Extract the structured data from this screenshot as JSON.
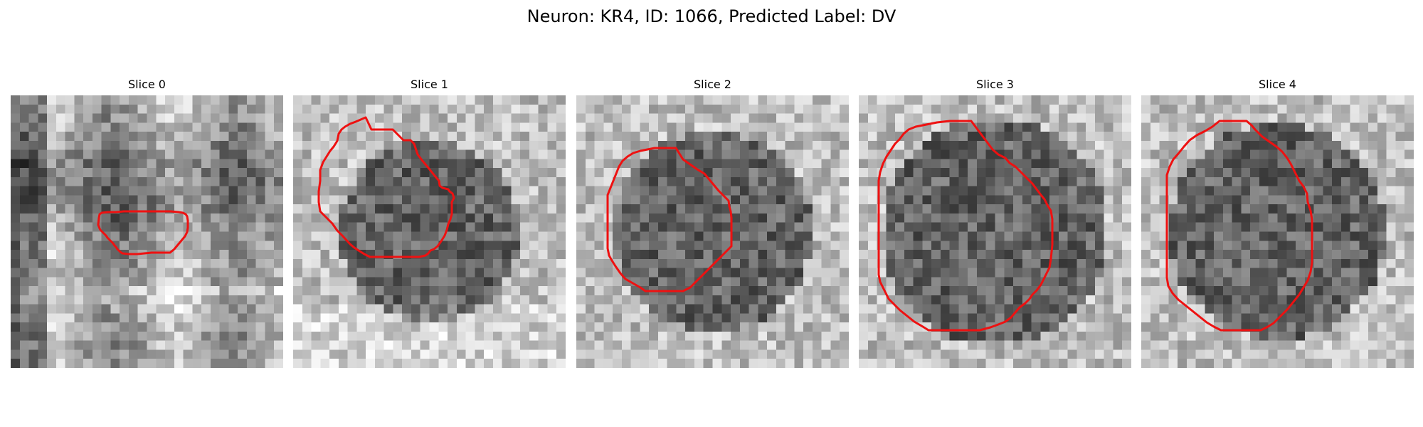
{
  "figure": {
    "title": "Neuron: KR4, ID: 1066, Predicted Label: DV"
  },
  "panels": [
    {
      "title": "Slice 0"
    },
    {
      "title": "Slice 1"
    },
    {
      "title": "Slice 2"
    },
    {
      "title": "Slice 3"
    },
    {
      "title": "Slice 4"
    }
  ],
  "contour_color": "#ee1111"
}
